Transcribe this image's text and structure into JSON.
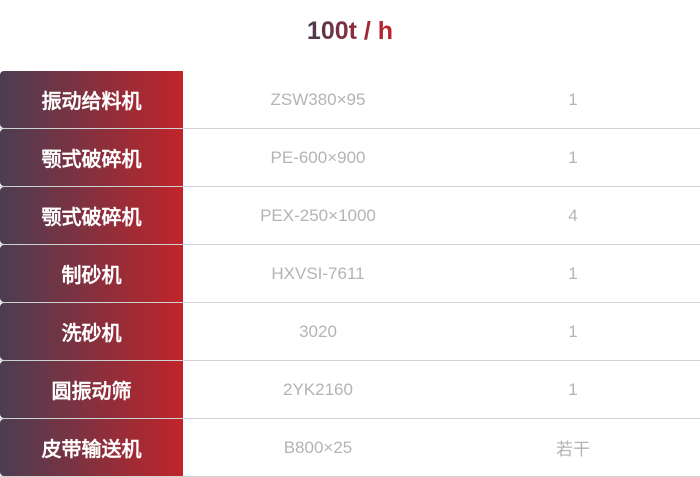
{
  "title": "100t / h",
  "rows": [
    {
      "name": "振动给料机",
      "model": "ZSW380×95",
      "qty": "1"
    },
    {
      "name": "颚式破碎机",
      "model": "PE-600×900",
      "qty": "1"
    },
    {
      "name": "颚式破碎机",
      "model": "PEX-250×1000",
      "qty": "4"
    },
    {
      "name": "制砂机",
      "model": "HXVSI-7611",
      "qty": "1"
    },
    {
      "name": "洗砂机",
      "model": "3020",
      "qty": "1"
    },
    {
      "name": "圆振动筛",
      "model": "2YK2160",
      "qty": "1"
    },
    {
      "name": "皮带输送机",
      "model": "B800×25",
      "qty": "若干"
    }
  ]
}
